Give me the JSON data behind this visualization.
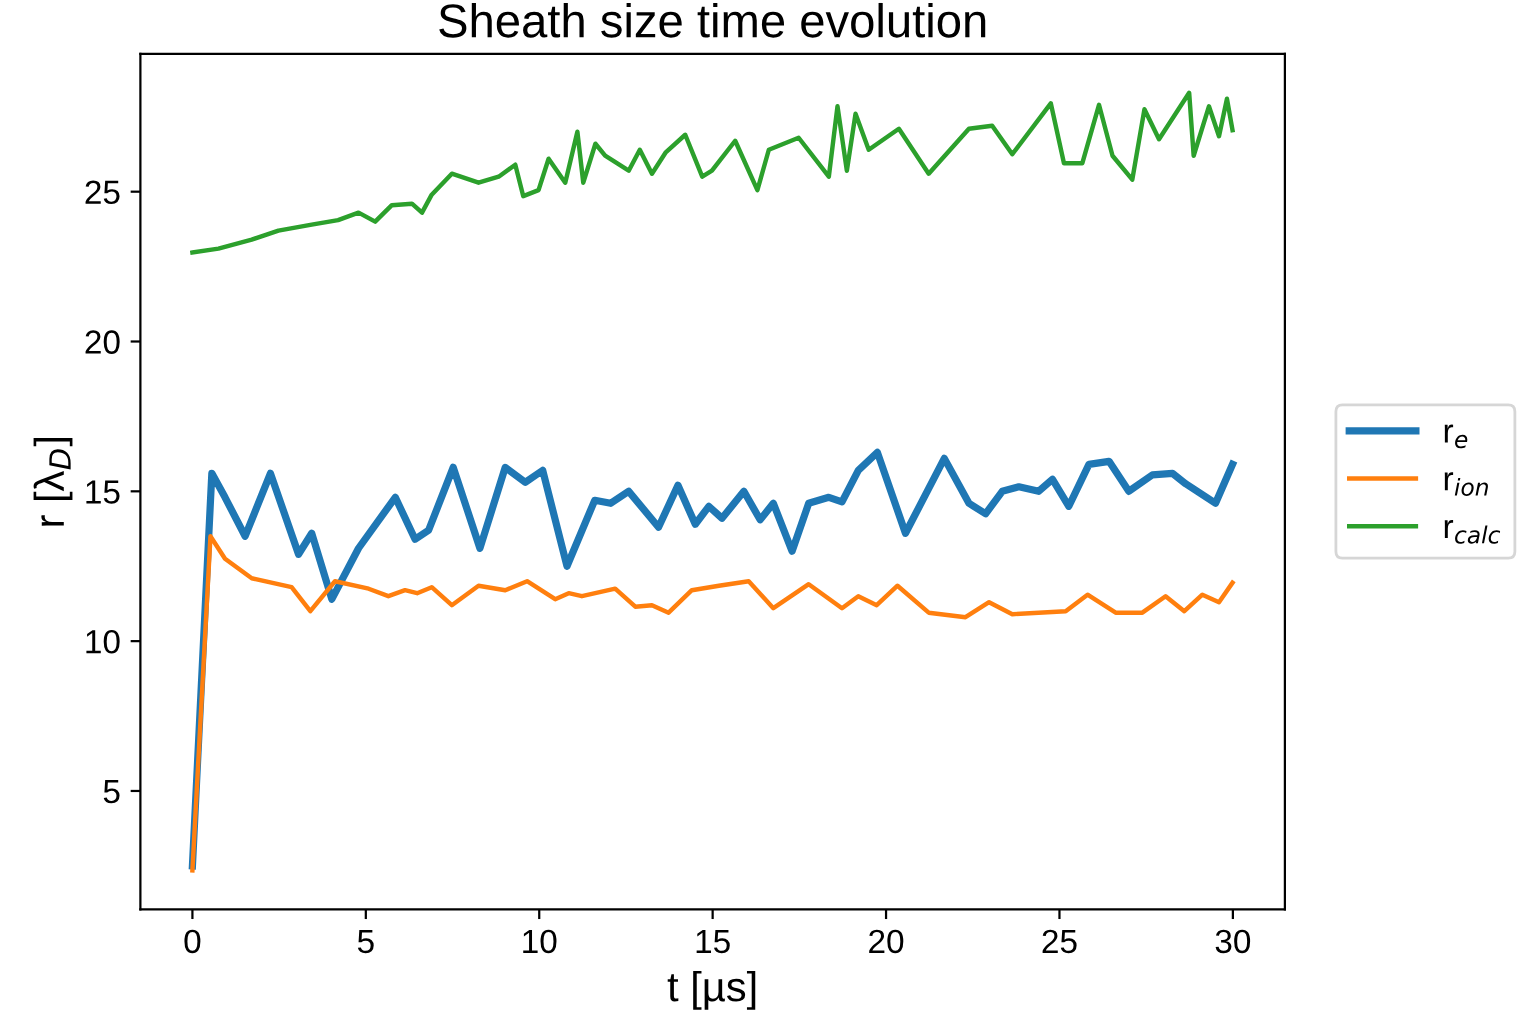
{
  "chart_data": {
    "type": "line",
    "title": "Sheath size time evolution",
    "xlabel": "t [µs]",
    "ylabel": "r [λ$_{D}$]",
    "xlim": [
      -1.5,
      31.5
    ],
    "ylim": [
      1.05,
      29.6
    ],
    "xticks": [
      0,
      5,
      10,
      15,
      20,
      25,
      30
    ],
    "yticks": [
      5,
      10,
      15,
      20,
      25
    ],
    "grid": false,
    "legend": "right",
    "line_style": "solid",
    "marker": "none",
    "series": [
      {
        "name": "r$_{e}$",
        "color": "#1f77b4",
        "x": [
          0,
          0.56,
          0.94,
          1.52,
          2.25,
          3.06,
          3.44,
          4.02,
          4.79,
          5.85,
          6.42,
          6.81,
          7.52,
          8.29,
          9.02,
          9.6,
          10.1,
          10.8,
          11.6,
          12.06,
          12.58,
          13.44,
          14.0,
          14.5,
          14.89,
          15.27,
          15.9,
          16.37,
          16.75,
          17.29,
          17.77,
          18.35,
          18.73,
          19.2,
          19.75,
          20.56,
          21.68,
          22.39,
          22.87,
          23.35,
          23.83,
          24.4,
          24.8,
          25.27,
          25.85,
          26.43,
          27.0,
          27.68,
          28.26,
          28.64,
          29.5,
          29.99
        ],
        "values": [
          2.5,
          15.6,
          14.8,
          13.5,
          15.6,
          12.9,
          13.6,
          11.4,
          13.1,
          14.8,
          13.4,
          13.7,
          15.8,
          13.1,
          15.8,
          15.3,
          15.7,
          12.5,
          14.7,
          14.6,
          15.0,
          13.8,
          15.2,
          13.9,
          14.5,
          14.1,
          15.0,
          14.05,
          14.6,
          13.0,
          14.6,
          14.8,
          14.65,
          15.7,
          16.3,
          13.6,
          16.1,
          14.6,
          14.25,
          15.0,
          15.15,
          15.0,
          15.4,
          14.5,
          15.9,
          16.0,
          15.0,
          15.55,
          15.6,
          15.25,
          14.6,
          15.9
        ]
      },
      {
        "name": "r$_{ion}$",
        "color": "#ff7f0e",
        "x": [
          0,
          0.52,
          0.94,
          1.71,
          2.86,
          3.4,
          4.11,
          5.08,
          5.65,
          6.13,
          6.48,
          6.9,
          7.48,
          8.25,
          9.02,
          9.65,
          10.46,
          10.85,
          11.23,
          12.19,
          12.77,
          13.25,
          13.73,
          14.4,
          15.18,
          16.04,
          16.75,
          17.77,
          18.73,
          19.2,
          19.73,
          20.33,
          21.23,
          22.29,
          22.97,
          23.64,
          25.18,
          25.81,
          26.62,
          27.39,
          28.06,
          28.6,
          29.12,
          29.6,
          29.99
        ],
        "values": [
          2.35,
          13.5,
          12.75,
          12.1,
          11.8,
          11.0,
          12.0,
          11.75,
          11.5,
          11.7,
          11.6,
          11.8,
          11.2,
          11.85,
          11.7,
          12.0,
          11.4,
          11.6,
          11.5,
          11.75,
          11.15,
          11.2,
          10.95,
          11.7,
          11.85,
          12.0,
          11.1,
          11.9,
          11.1,
          11.5,
          11.2,
          11.85,
          10.95,
          10.8,
          11.3,
          10.9,
          11.0,
          11.55,
          10.95,
          10.95,
          11.5,
          11.0,
          11.55,
          11.3,
          11.95
        ]
      },
      {
        "name": "r$_{calc}$",
        "color": "#2ca02c",
        "x": [
          0,
          0.75,
          1.71,
          2.48,
          3.44,
          4.2,
          4.79,
          5.27,
          5.75,
          6.33,
          6.62,
          6.9,
          7.48,
          8.25,
          8.83,
          9.31,
          9.54,
          9.98,
          10.27,
          10.75,
          11.1,
          11.27,
          11.62,
          11.9,
          12.58,
          12.9,
          13.25,
          13.64,
          14.21,
          14.7,
          14.98,
          15.65,
          16.29,
          16.62,
          17.48,
          18.35,
          18.6,
          18.87,
          19.12,
          19.5,
          20.37,
          21.23,
          22.39,
          23.06,
          23.64,
          24.75,
          25.13,
          25.66,
          26.14,
          26.53,
          27.1,
          27.45,
          27.87,
          28.74,
          28.87,
          29.31,
          29.6,
          29.83,
          29.99
        ],
        "values": [
          22.97,
          23.1,
          23.4,
          23.7,
          23.9,
          24.05,
          24.3,
          24.0,
          24.55,
          24.6,
          24.3,
          24.9,
          25.6,
          25.3,
          25.5,
          25.9,
          24.85,
          25.05,
          26.1,
          25.3,
          27.0,
          25.3,
          26.6,
          26.2,
          25.7,
          26.4,
          25.6,
          26.3,
          26.9,
          25.5,
          25.7,
          26.7,
          25.05,
          26.4,
          26.8,
          25.5,
          27.85,
          25.7,
          27.6,
          26.4,
          27.1,
          25.6,
          27.1,
          27.2,
          26.25,
          27.95,
          25.95,
          25.95,
          27.9,
          26.2,
          25.4,
          27.75,
          26.75,
          28.3,
          26.2,
          27.85,
          26.85,
          28.1,
          27.05
        ]
      }
    ]
  }
}
